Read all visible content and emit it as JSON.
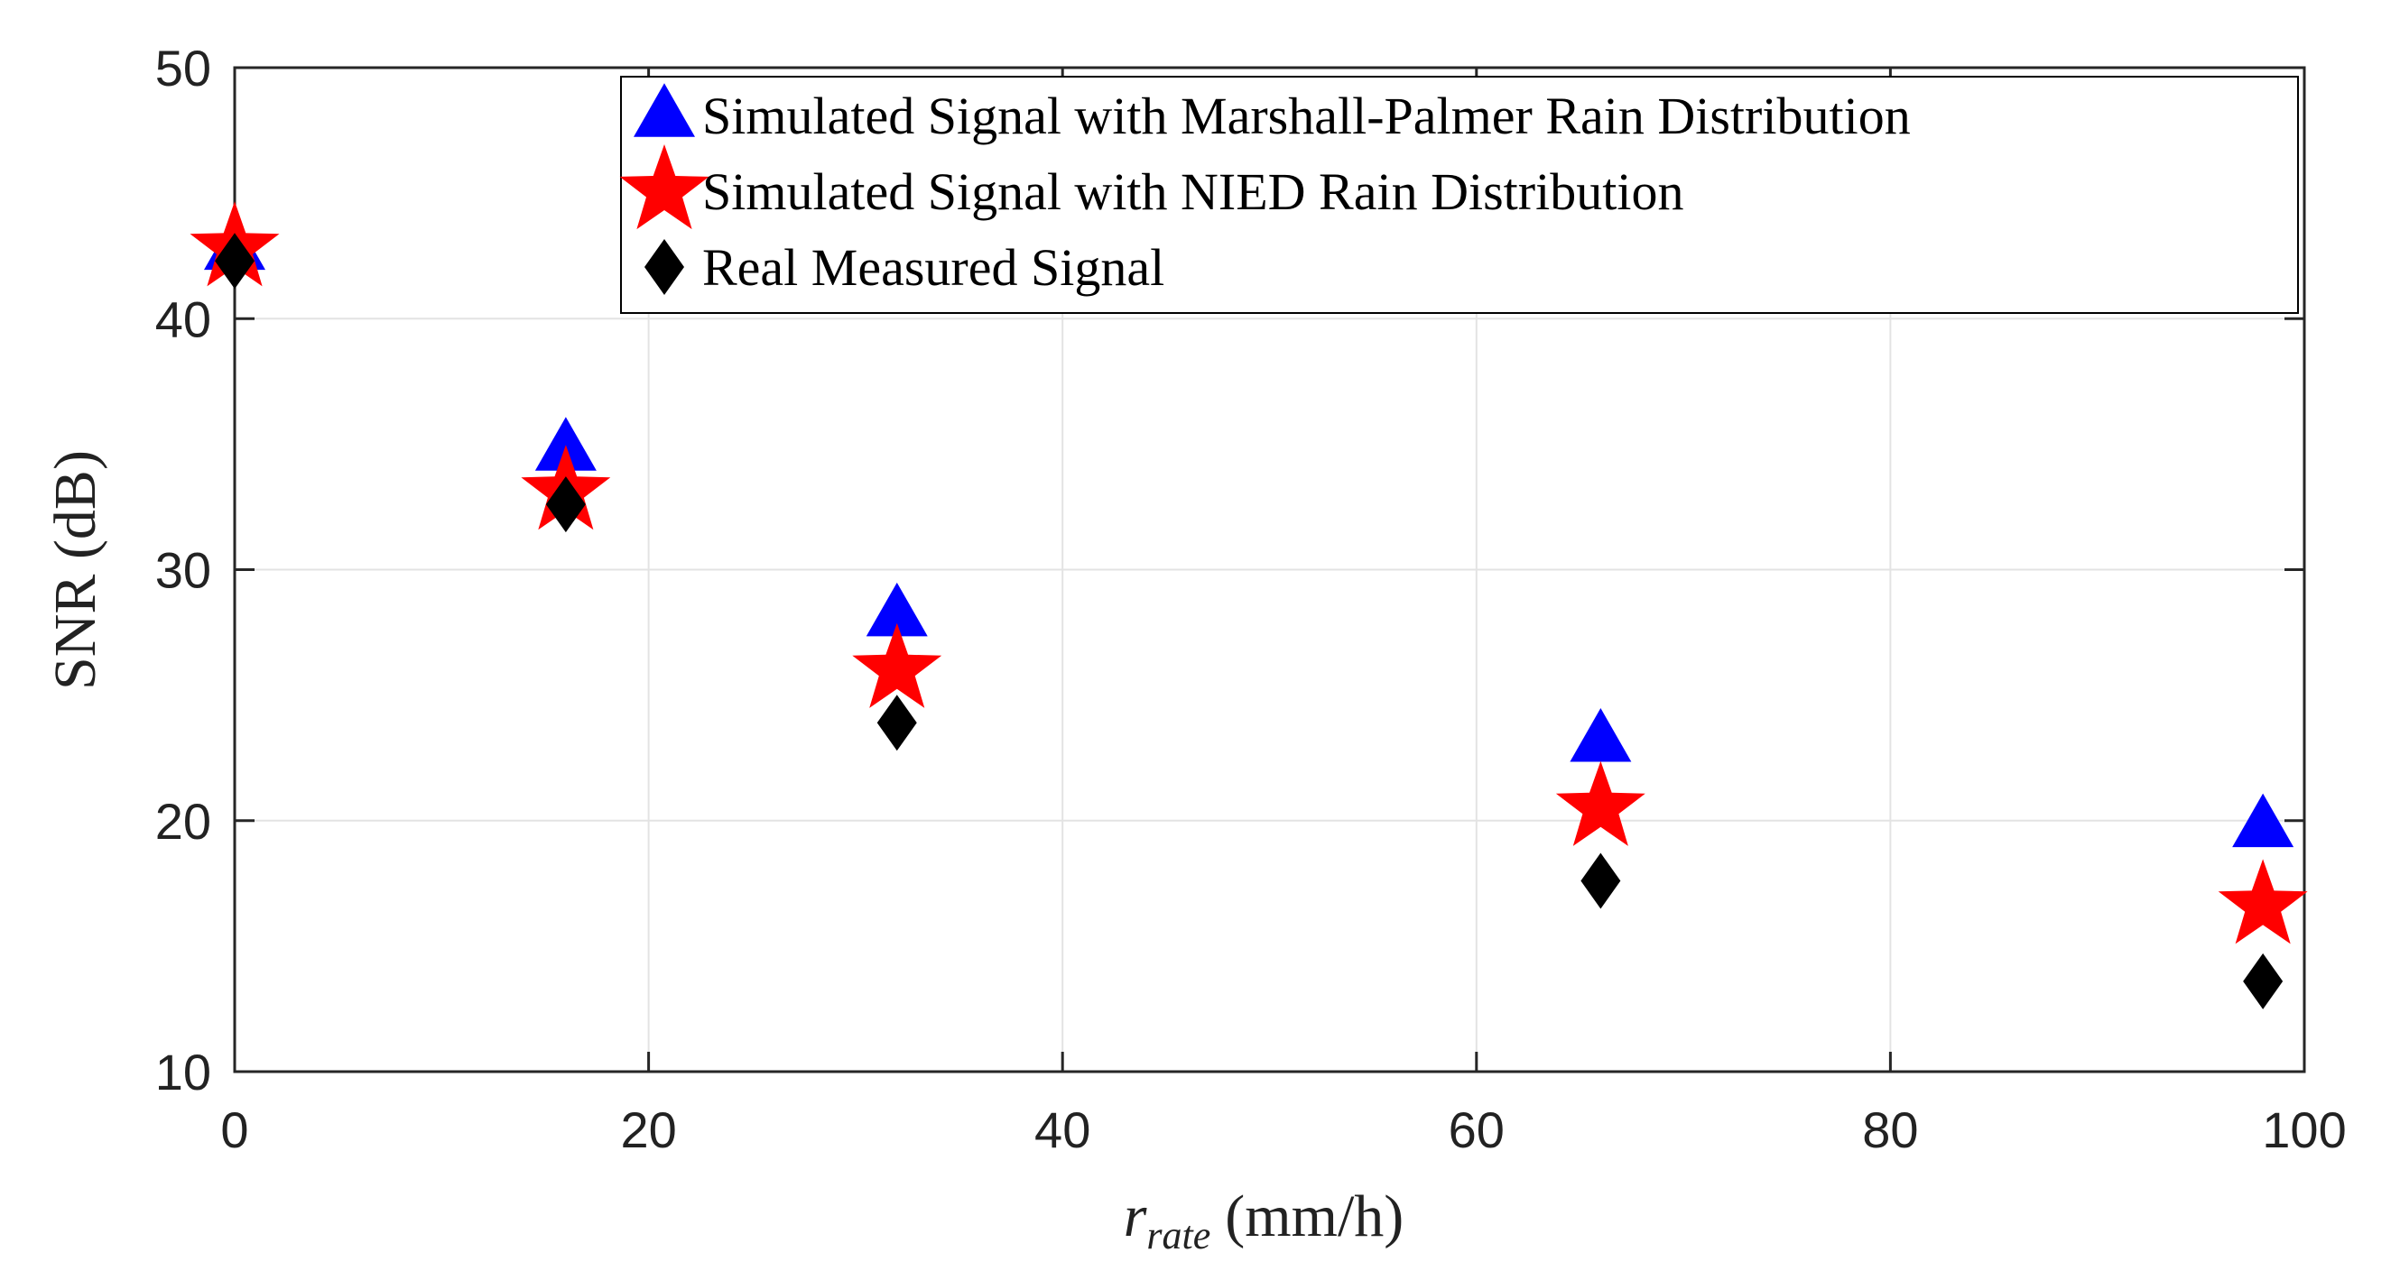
{
  "chart_data": {
    "type": "scatter",
    "title": "",
    "xlabel": {
      "main": "r",
      "sub": "rate",
      "unit": "(mm/h)"
    },
    "ylabel": "SNR (dB)",
    "xlim": [
      0,
      100
    ],
    "ylim": [
      10,
      50
    ],
    "xticks": [
      0,
      20,
      40,
      60,
      80,
      100
    ],
    "yticks": [
      10,
      20,
      30,
      40,
      50
    ],
    "grid": true,
    "legend_position": "top-right",
    "series": [
      {
        "name": "Simulated Signal with Marshall-Palmer Rain Distribution",
        "marker": "triangle",
        "color": "#0000ff",
        "x": [
          0,
          16,
          32,
          66,
          98
        ],
        "y": [
          42.8,
          34.8,
          28.2,
          23.2,
          19.8
        ]
      },
      {
        "name": "Simulated Signal with NIED Rain Distribution",
        "marker": "star",
        "color": "#ff0000",
        "x": [
          0,
          16,
          32,
          66,
          98
        ],
        "y": [
          42.8,
          33.1,
          26.0,
          20.5,
          16.6
        ]
      },
      {
        "name": "Real Measured Signal",
        "marker": "diamond",
        "color": "#000000",
        "x": [
          0,
          16,
          32,
          66,
          98
        ],
        "y": [
          42.3,
          32.6,
          23.9,
          17.6,
          13.6
        ]
      }
    ]
  }
}
